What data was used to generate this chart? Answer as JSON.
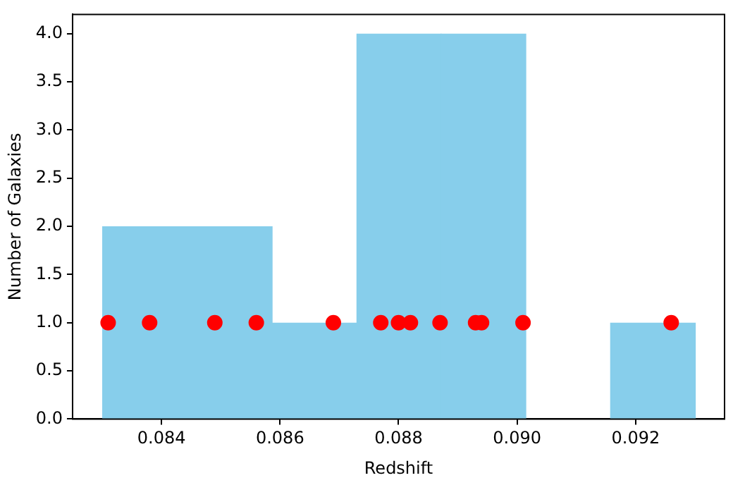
{
  "chart_data": {
    "type": "histogram",
    "xlabel": "Redshift",
    "ylabel": "Number of Galaxies",
    "series": [
      {
        "type": "histogram",
        "bins": [
          0.083,
          0.08443,
          0.08586,
          0.08729,
          0.08871,
          0.09014,
          0.09157,
          0.093
        ],
        "values": [
          2,
          2,
          1,
          4,
          4,
          0,
          1
        ],
        "color": "#87ceeb"
      },
      {
        "type": "scatter",
        "x": [
          0.0831,
          0.0838,
          0.0849,
          0.0856,
          0.0869,
          0.0877,
          0.088,
          0.0882,
          0.0887,
          0.0893,
          0.0894,
          0.0901,
          0.0926
        ],
        "values": [
          1,
          1,
          1,
          1,
          1,
          1,
          1,
          1,
          1,
          1,
          1,
          1,
          1
        ],
        "color": "#ff0000",
        "marker": "circle"
      }
    ],
    "xlim": [
      0.0825,
      0.0935
    ],
    "xticks": [
      0.084,
      0.086,
      0.088,
      {
        "value": 0.09,
        "label": "0.090"
      },
      0.092
    ],
    "ylim": [
      0,
      4.2
    ],
    "yticks": [
      {
        "value": 0,
        "label": "0.0"
      },
      {
        "value": 0.5,
        "label": "0.5"
      },
      {
        "value": 1,
        "label": "1.0"
      },
      {
        "value": 1.5,
        "label": "1.5"
      },
      {
        "value": 2,
        "label": "2.0"
      },
      {
        "value": 2.5,
        "label": "2.5"
      },
      {
        "value": 3,
        "label": "3.0"
      },
      {
        "value": 3.5,
        "label": "3.5"
      },
      {
        "value": 4,
        "label": "4.0"
      }
    ]
  }
}
